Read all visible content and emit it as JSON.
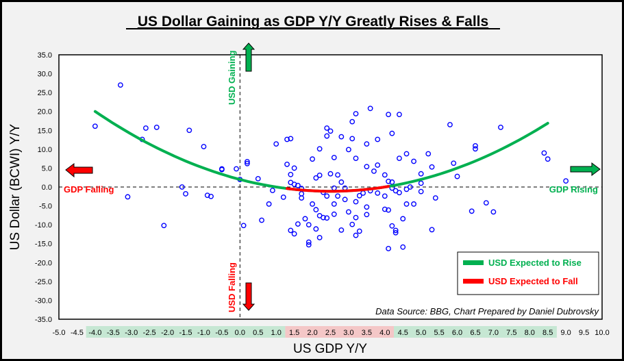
{
  "chart_data": {
    "type": "scatter",
    "title": "US Dollar Gaining as GDP Y/Y Greatly Rises & Falls",
    "xlabel": "US GDP Y/Y",
    "ylabel": "US Dollar (BCWI) Y/Y",
    "xlim": [
      -5.0,
      10.0
    ],
    "ylim": [
      -35.0,
      35.0
    ],
    "x_ticks": [
      "-5.0",
      "-4.5",
      "-4.0",
      "-3.5",
      "-3.0",
      "-2.5",
      "-2.0",
      "-1.5",
      "-1.0",
      "-0.5",
      "0.0",
      "0.5",
      "1.0",
      "1.5",
      "2.0",
      "2.5",
      "3.0",
      "3.5",
      "4.0",
      "4.5",
      "5.0",
      "5.5",
      "6.0",
      "6.5",
      "7.0",
      "7.5",
      "8.0",
      "8.5",
      "9.0",
      "9.5",
      "10.0"
    ],
    "y_ticks": [
      "35.0",
      "30.0",
      "25.0",
      "20.0",
      "15.0",
      "10.0",
      "5.0",
      "0.0",
      "-5.0",
      "-10.0",
      "-15.0",
      "-20.0",
      "-25.0",
      "-30.0",
      "-35.0"
    ],
    "x_tick_bands": [
      {
        "from": -4.0,
        "to": 1.0,
        "color": "#c6e7d3",
        "meaning": "rise"
      },
      {
        "from": 1.5,
        "to": 4.0,
        "color": "#f4c7c7",
        "meaning": "fall"
      },
      {
        "from": 4.5,
        "to": 8.5,
        "color": "#c6e7d3",
        "meaning": "rise"
      }
    ],
    "grid": false,
    "series": [
      {
        "name": "Observations",
        "marker": "open-circle",
        "color": "#0000ff",
        "points": [
          [
            -4.0,
            16.1
          ],
          [
            -3.3,
            27.0
          ],
          [
            -2.6,
            15.6
          ],
          [
            -2.3,
            15.8
          ],
          [
            -2.7,
            12.6
          ],
          [
            -1.4,
            15.0
          ],
          [
            -1.0,
            10.7
          ],
          [
            -0.5,
            4.6
          ],
          [
            -2.1,
            -10.2
          ],
          [
            -3.1,
            -2.6
          ],
          [
            -1.6,
            0.0
          ],
          [
            -1.5,
            -1.8
          ],
          [
            -0.9,
            -2.2
          ],
          [
            -0.8,
            -2.5
          ],
          [
            -0.5,
            4.8
          ],
          [
            -0.1,
            4.8
          ],
          [
            -0.0,
            2.0
          ],
          [
            0.1,
            -10.2
          ],
          [
            0.2,
            6.2
          ],
          [
            0.2,
            6.7
          ],
          [
            0.5,
            2.2
          ],
          [
            0.8,
            -4.5
          ],
          [
            0.6,
            -8.8
          ],
          [
            0.9,
            -0.9
          ],
          [
            1.0,
            11.4
          ],
          [
            1.3,
            12.6
          ],
          [
            1.4,
            12.8
          ],
          [
            1.3,
            6.0
          ],
          [
            1.4,
            3.3
          ],
          [
            1.4,
            1.2
          ],
          [
            1.5,
            0.7
          ],
          [
            1.6,
            0.4
          ],
          [
            1.7,
            -0.4
          ],
          [
            1.7,
            -2.9
          ],
          [
            1.7,
            -1.8
          ],
          [
            1.5,
            5.0
          ],
          [
            1.2,
            -2.7
          ],
          [
            1.4,
            -11.5
          ],
          [
            1.5,
            -12.4
          ],
          [
            1.6,
            -9.8
          ],
          [
            1.8,
            -8.4
          ],
          [
            1.9,
            -10.0
          ],
          [
            1.9,
            -14.6
          ],
          [
            1.9,
            -15.3
          ],
          [
            2.1,
            -6.0
          ],
          [
            2.1,
            -11.1
          ],
          [
            2.2,
            -7.6
          ],
          [
            2.2,
            -13.4
          ],
          [
            2.3,
            -8.1
          ],
          [
            2.4,
            -8.2
          ],
          [
            2.0,
            -4.5
          ],
          [
            2.1,
            2.4
          ],
          [
            2.2,
            3.1
          ],
          [
            2.5,
            3.5
          ],
          [
            2.3,
            -1.4
          ],
          [
            2.4,
            -2.4
          ],
          [
            2.6,
            -0.3
          ],
          [
            2.6,
            -4.5
          ],
          [
            2.6,
            -7.2
          ],
          [
            2.8,
            -11.4
          ],
          [
            2.7,
            -2.4
          ],
          [
            2.9,
            -0.3
          ],
          [
            2.9,
            -3.3
          ],
          [
            3.0,
            -6.6
          ],
          [
            3.1,
            -9.9
          ],
          [
            3.2,
            -8.1
          ],
          [
            3.2,
            -12.8
          ],
          [
            3.2,
            -3.9
          ],
          [
            3.3,
            -2.3
          ],
          [
            3.4,
            -1.6
          ],
          [
            3.5,
            -5.3
          ],
          [
            3.5,
            -7.3
          ],
          [
            3.3,
            -11.7
          ],
          [
            2.0,
            7.4
          ],
          [
            2.2,
            10.1
          ],
          [
            2.4,
            15.6
          ],
          [
            2.5,
            14.8
          ],
          [
            2.4,
            13.5
          ],
          [
            2.8,
            13.3
          ],
          [
            3.1,
            12.8
          ],
          [
            3.1,
            17.3
          ],
          [
            3.2,
            19.4
          ],
          [
            3.2,
            7.6
          ],
          [
            3.0,
            9.9
          ],
          [
            2.6,
            7.8
          ],
          [
            2.7,
            3.2
          ],
          [
            2.8,
            1.3
          ],
          [
            3.5,
            5.4
          ],
          [
            3.6,
            20.8
          ],
          [
            3.8,
            12.6
          ],
          [
            4.1,
            19.2
          ],
          [
            4.4,
            19.2
          ],
          [
            4.2,
            14.2
          ],
          [
            4.4,
            7.6
          ],
          [
            4.6,
            8.8
          ],
          [
            4.8,
            6.8
          ],
          [
            3.5,
            11.4
          ],
          [
            3.7,
            4.2
          ],
          [
            3.8,
            5.8
          ],
          [
            4.0,
            3.2
          ],
          [
            4.1,
            1.5
          ],
          [
            4.2,
            1.3
          ],
          [
            4.2,
            -0.3
          ],
          [
            4.3,
            -1.0
          ],
          [
            4.4,
            -1.5
          ],
          [
            4.6,
            -0.6
          ],
          [
            4.6,
            -4.5
          ],
          [
            4.8,
            -4.5
          ],
          [
            4.0,
            -5.9
          ],
          [
            4.1,
            -6.1
          ],
          [
            4.2,
            -10.3
          ],
          [
            4.3,
            -11.5
          ],
          [
            4.5,
            -8.4
          ],
          [
            4.1,
            -16.3
          ],
          [
            4.5,
            -15.9
          ],
          [
            4.3,
            -12.1
          ],
          [
            4.0,
            -2.4
          ],
          [
            3.8,
            -1.6
          ],
          [
            3.6,
            -1.0
          ],
          [
            5.3,
            -11.3
          ],
          [
            5.4,
            -2.9
          ],
          [
            5.8,
            16.5
          ],
          [
            5.9,
            6.3
          ],
          [
            6.0,
            2.8
          ],
          [
            6.4,
            -6.4
          ],
          [
            6.5,
            10.9
          ],
          [
            6.5,
            10.1
          ],
          [
            6.8,
            -4.2
          ],
          [
            7.0,
            -6.6
          ],
          [
            7.2,
            15.8
          ],
          [
            8.4,
            9.0
          ],
          [
            8.5,
            7.4
          ],
          [
            9.0,
            1.6
          ],
          [
            5.3,
            5.3
          ],
          [
            5.0,
            1.0
          ],
          [
            5.0,
            -1.2
          ],
          [
            4.7,
            0.0
          ],
          [
            5.0,
            3.5
          ],
          [
            5.2,
            8.8
          ]
        ]
      }
    ],
    "fit_curves": [
      {
        "name": "USD Expected to Rise",
        "color": "#00b050",
        "type": "quadratic",
        "coeffs": {
          "a": 0.5,
          "b": -2.5,
          "c": 2.0
        },
        "x_range": [
          -4.0,
          8.5
        ]
      },
      {
        "name": "USD Expected to Fall",
        "color": "#ff0000",
        "type": "quadratic",
        "coeffs": {
          "a": 0.5,
          "b": -2.5,
          "c": 2.0
        },
        "x_range": [
          1.3,
          4.1
        ]
      }
    ],
    "legend": {
      "placement": "bottom-right",
      "entries": [
        {
          "label": "USD Expected to Rise",
          "color": "#00b050"
        },
        {
          "label": "USD Expected to Fall",
          "color": "#ff0000"
        }
      ]
    },
    "annotations": {
      "gdp_falling": "GDP Falling",
      "gdp_rising": "GDP Rising",
      "usd_gaining": "USD Gaining",
      "usd_falling": "USD Falling",
      "source": "Data Source: BBG, Chart Prepared by Daniel Dubrovsky"
    },
    "reference_lines": {
      "x": 0.0,
      "y": 0.0,
      "style": "dashed"
    }
  }
}
